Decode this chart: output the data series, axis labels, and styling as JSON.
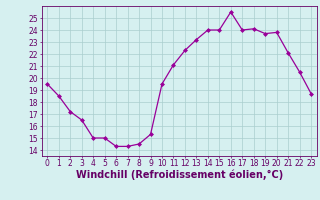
{
  "x": [
    0,
    1,
    2,
    3,
    4,
    5,
    6,
    7,
    8,
    9,
    10,
    11,
    12,
    13,
    14,
    15,
    16,
    17,
    18,
    19,
    20,
    21,
    22,
    23
  ],
  "y": [
    19.5,
    18.5,
    17.2,
    16.5,
    15.0,
    15.0,
    14.3,
    14.3,
    14.5,
    15.3,
    19.5,
    21.1,
    22.3,
    23.2,
    24.0,
    24.0,
    25.5,
    24.0,
    24.1,
    23.7,
    23.8,
    22.1,
    20.5,
    18.7
  ],
  "line_color": "#990099",
  "marker": "D",
  "marker_size": 2,
  "bg_color": "#d6f0f0",
  "grid_color": "#aacece",
  "text_color": "#660066",
  "xlabel": "Windchill (Refroidissement éolien,°C)",
  "xlim": [
    -0.5,
    23.5
  ],
  "ylim": [
    13.5,
    26.0
  ],
  "yticks": [
    14,
    15,
    16,
    17,
    18,
    19,
    20,
    21,
    22,
    23,
    24,
    25
  ],
  "xticks": [
    0,
    1,
    2,
    3,
    4,
    5,
    6,
    7,
    8,
    9,
    10,
    11,
    12,
    13,
    14,
    15,
    16,
    17,
    18,
    19,
    20,
    21,
    22,
    23
  ],
  "tick_fontsize": 5.5,
  "xlabel_fontsize": 7.0
}
